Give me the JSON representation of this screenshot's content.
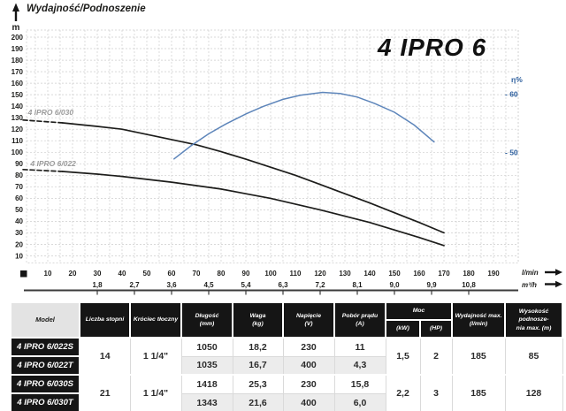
{
  "chart_data": {
    "type": "line",
    "title": "4 IPRO 6",
    "axis_title": "Wydajność/Podnoszenie",
    "ylabel": "m",
    "xlabel_primary": "l/min",
    "xlabel_secondary": "m³/h",
    "y2label": "η%",
    "xlim": [
      0,
      200
    ],
    "ylim": [
      10,
      200
    ],
    "grid": true,
    "y_ticks": [
      10,
      20,
      30,
      40,
      50,
      60,
      70,
      80,
      90,
      100,
      110,
      120,
      130,
      140,
      150,
      160,
      170,
      180,
      190,
      200
    ],
    "x_ticks_lmin": [
      10,
      20,
      30,
      40,
      50,
      60,
      70,
      80,
      90,
      100,
      110,
      120,
      130,
      140,
      150,
      160,
      170,
      180,
      190
    ],
    "x_ticks_m3h": {
      "labels": [
        "1,8",
        "2,7",
        "3,6",
        "4,5",
        "5,4",
        "6,3",
        "7,2",
        "8,1",
        "9,0",
        "9,9",
        "10,8"
      ],
      "positions_lmin": [
        30,
        45,
        60,
        75,
        90,
        105,
        120,
        135,
        150,
        165,
        180
      ]
    },
    "y2_ticks": [
      60,
      50
    ],
    "series": [
      {
        "id": "head-030",
        "name": "4 IPRO 6/030",
        "color": "#1d1d1b",
        "axis": "y",
        "dashed_until": 16,
        "label_at": [
          2,
          132.5
        ],
        "points": [
          [
            0,
            128
          ],
          [
            16,
            125.5
          ],
          [
            30,
            122.5
          ],
          [
            40,
            120
          ],
          [
            50,
            115.5
          ],
          [
            60,
            111
          ],
          [
            70,
            106.5
          ],
          [
            80,
            100.5
          ],
          [
            90,
            94
          ],
          [
            100,
            87
          ],
          [
            110,
            80
          ],
          [
            120,
            72
          ],
          [
            130,
            64
          ],
          [
            140,
            56
          ],
          [
            150,
            47.5
          ],
          [
            160,
            39
          ],
          [
            170,
            30
          ]
        ]
      },
      {
        "id": "head-022",
        "name": "4 IPRO 6/022",
        "color": "#1d1d1b",
        "axis": "y",
        "dashed_until": 16,
        "label_at": [
          3,
          88
        ],
        "points": [
          [
            0,
            85
          ],
          [
            16,
            83.3
          ],
          [
            30,
            81
          ],
          [
            40,
            79
          ],
          [
            50,
            76.5
          ],
          [
            60,
            74
          ],
          [
            70,
            71
          ],
          [
            80,
            68
          ],
          [
            90,
            64
          ],
          [
            100,
            60
          ],
          [
            110,
            55
          ],
          [
            120,
            50
          ],
          [
            130,
            44.5
          ],
          [
            140,
            39
          ],
          [
            150,
            32.5
          ],
          [
            160,
            26
          ],
          [
            170,
            19
          ]
        ]
      },
      {
        "id": "efficiency",
        "name": "efficiency-eta",
        "color": "#5d85ba",
        "axis": "y2",
        "points": [
          [
            61,
            48.9
          ],
          [
            68,
            51.2
          ],
          [
            75,
            53.2
          ],
          [
            82,
            54.9
          ],
          [
            90,
            56.6
          ],
          [
            97,
            57.9
          ],
          [
            105,
            59.1
          ],
          [
            112,
            59.8
          ],
          [
            121,
            60.3
          ],
          [
            128,
            60.1
          ],
          [
            135,
            59.5
          ],
          [
            142,
            58.4
          ],
          [
            150,
            56.9
          ],
          [
            158,
            54.7
          ],
          [
            166,
            51.8
          ]
        ]
      }
    ]
  },
  "table": {
    "headers": {
      "model": "Model",
      "liczba_stopni": "Liczba stopni",
      "krociec": "Króciec tłoczny",
      "dlugosc": "Długość",
      "dlugosc_unit": "(mm)",
      "waga": "Waga",
      "waga_unit": "(kg)",
      "napiecie": "Napięcie",
      "napiecie_unit": "(V)",
      "pobor": "Pobór prądu",
      "pobor_unit": "(A)",
      "moc": "Moc",
      "moc_kw": "(kW)",
      "moc_hp": "(HP)",
      "wydajnosc_1": "Wydajność max.",
      "wydajnosc_2": "(l/min)",
      "wysokosc_1": "Wysokość podnosze-",
      "wysokosc_2": "nia max. (m)"
    },
    "groups": [
      {
        "liczba_stopni": "14",
        "krociec": "1 1/4\"",
        "moc_kw": "1,5",
        "moc_hp": "2",
        "wydajnosc": "185",
        "wysokosc": "85",
        "rows": [
          {
            "model": "4 IPRO 6/022S",
            "dlugosc": "1050",
            "waga": "18,2",
            "napiecie": "230",
            "pobor": "11"
          },
          {
            "model": "4 IPRO 6/022T",
            "dlugosc": "1035",
            "waga": "16,7",
            "napiecie": "400",
            "pobor": "4,3"
          }
        ]
      },
      {
        "liczba_stopni": "21",
        "krociec": "1 1/4\"",
        "moc_kw": "2,2",
        "moc_hp": "3",
        "wydajnosc": "185",
        "wysokosc": "128",
        "rows": [
          {
            "model": "4 IPRO 6/030S",
            "dlugosc": "1418",
            "waga": "25,3",
            "napiecie": "230",
            "pobor": "15,8"
          },
          {
            "model": "4 IPRO 6/030T",
            "dlugosc": "1343",
            "waga": "21,6",
            "napiecie": "400",
            "pobor": "6,0"
          }
        ]
      }
    ]
  }
}
